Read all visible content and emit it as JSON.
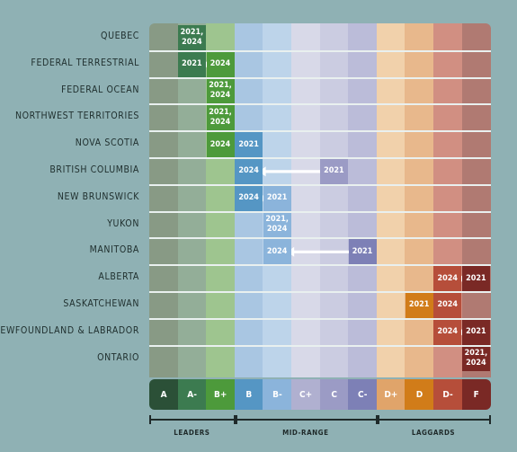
{
  "chart_data": {
    "type": "table",
    "grades": [
      "A",
      "A-",
      "B+",
      "B",
      "B-",
      "C+",
      "C",
      "C-",
      "D+",
      "D",
      "D-",
      "F"
    ],
    "grade_colors": {
      "A": "#2b5037",
      "A-": "#3c7b50",
      "B+": "#4d9a3b",
      "B": "#5596c4",
      "B-": "#8bb4db",
      "C+": "#b0b0d0",
      "C": "#9b9bc5",
      "C-": "#7d80b6",
      "D+": "#e0a46a",
      "D": "#d17c19",
      "D-": "#b64e3a",
      "F": "#7a2925"
    },
    "column_tints": [
      "#889a85",
      "#93ae98",
      "#9ec58f",
      "#a9c6e2",
      "#bdd4ea",
      "#d8d9e8",
      "#cbcce1",
      "#bbbcd9",
      "#f1d1ab",
      "#e8b88c",
      "#d18f82",
      "#b07a72"
    ],
    "groups": [
      {
        "label": "LEADERS",
        "from": 0,
        "to": 2
      },
      {
        "label": "MID-RANGE",
        "from": 3,
        "to": 7
      },
      {
        "label": "LAGGARDS",
        "from": 8,
        "to": 11
      }
    ],
    "rows": [
      {
        "name": "QUEBEC",
        "grade_2021": "A-",
        "grade_2024": "A-",
        "label": "2021,\n2024"
      },
      {
        "name": "FEDERAL TERRESTRIAL",
        "grade_2021": "A-",
        "grade_2024": "B+"
      },
      {
        "name": "FEDERAL OCEAN",
        "grade_2021": "B+",
        "grade_2024": "B+",
        "label": "2021,\n2024"
      },
      {
        "name": "NORTHWEST TERRITORIES",
        "grade_2021": "B+",
        "grade_2024": "B+",
        "label": "2021,\n2024"
      },
      {
        "name": "NOVA SCOTIA",
        "grade_2021": "B",
        "grade_2024": "B+"
      },
      {
        "name": "BRITISH COLUMBIA",
        "grade_2021": "C",
        "grade_2024": "B"
      },
      {
        "name": "NEW BRUNSWICK",
        "grade_2021": "B-",
        "grade_2024": "B"
      },
      {
        "name": "YUKON",
        "grade_2021": "B-",
        "grade_2024": "B-",
        "label": "2021,\n2024"
      },
      {
        "name": "MANITOBA",
        "grade_2021": "C-",
        "grade_2024": "B-"
      },
      {
        "name": "ALBERTA",
        "grade_2021": "F",
        "grade_2024": "D-"
      },
      {
        "name": "SASKATCHEWAN",
        "grade_2021": "D",
        "grade_2024": "D-"
      },
      {
        "name": "NEWFOUNDLAND & LABRADOR",
        "grade_2021": "F",
        "grade_2024": "D-"
      },
      {
        "name": "ONTARIO",
        "grade_2021": "F",
        "grade_2024": "F",
        "label": "2021,\n2024"
      }
    ],
    "year_2021": "2021",
    "year_2024": "2024"
  }
}
